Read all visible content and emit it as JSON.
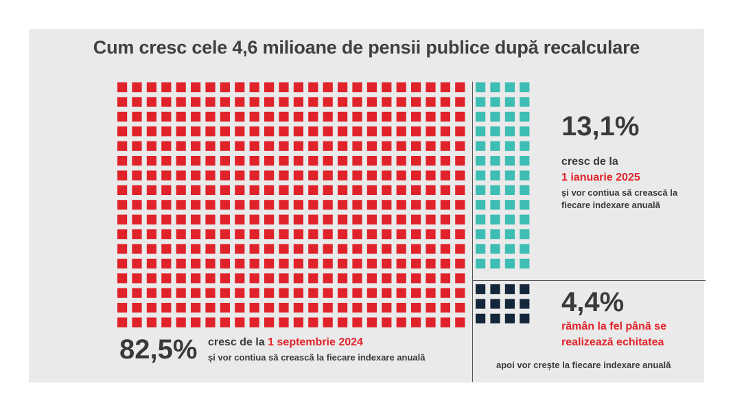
{
  "title": "Cum cresc cele 4,6 milioane de pensii publice după recalculare",
  "chart_data": {
    "type": "waffle",
    "title": "Cum cresc cele 4,6 milioane de pensii publice după recalculare",
    "segments": [
      {
        "value": 82.5,
        "label": "82,5%",
        "color": "#e0232a",
        "desc_prefix": "cresc de la ",
        "desc_highlight": "1 septembrie 2024",
        "desc_tail": "și vor contiua să crească la fiecare indexare anuală"
      },
      {
        "value": 13.1,
        "label": "13,1%",
        "color": "#3dbdb3",
        "desc_prefix": "cresc de la",
        "desc_highlight": "1 ianuarie 2025",
        "desc_tail_1": "și vor contiua să crească la",
        "desc_tail_2": "fiecare indexare anuală"
      },
      {
        "value": 4.4,
        "label": "4,4%",
        "color": "#14263a",
        "desc_highlight_1": "rămân la fel până se",
        "desc_highlight_2": "realizează echitatea",
        "desc_tail": "apoi vor crește la fiecare indexare anuală"
      }
    ]
  }
}
